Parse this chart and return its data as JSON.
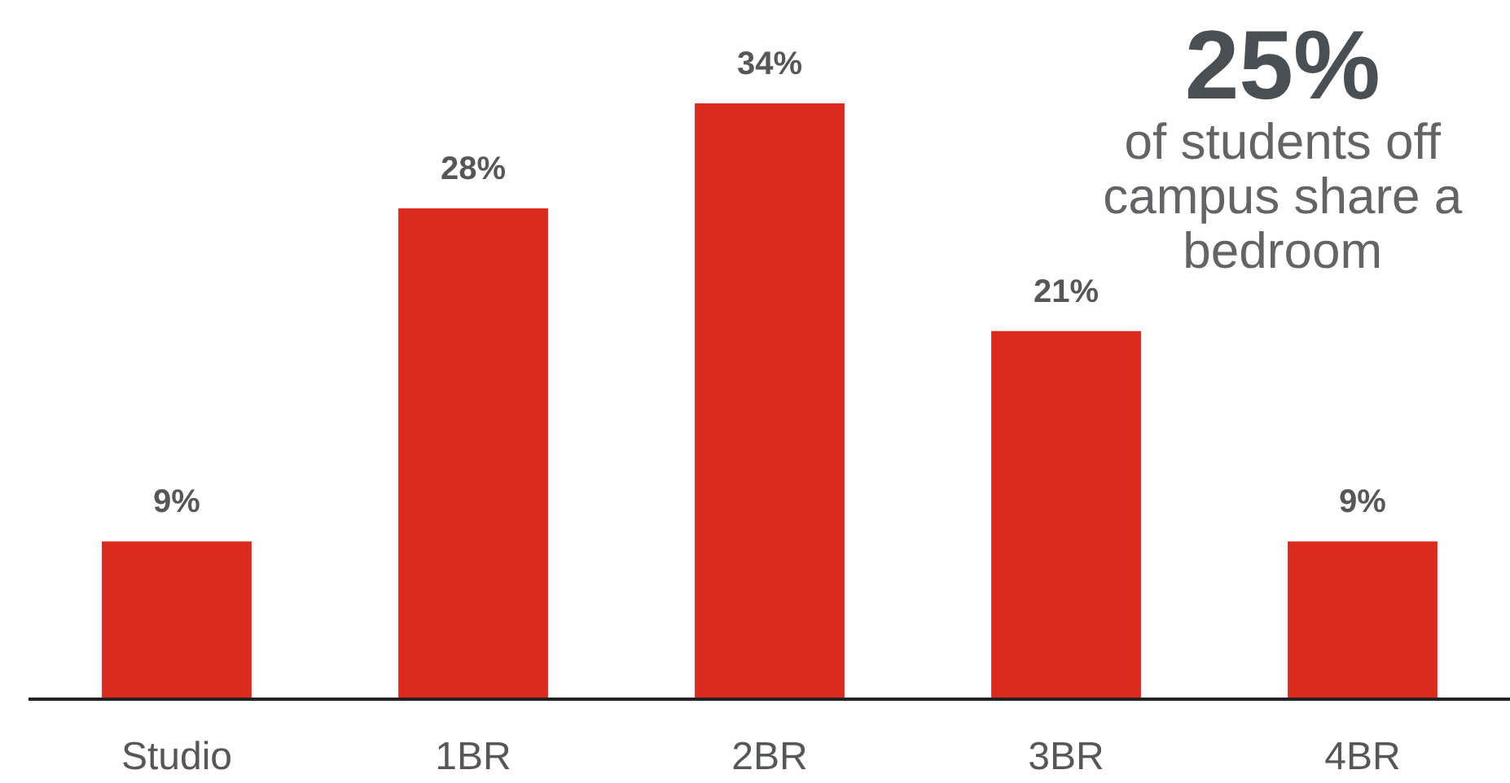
{
  "chart_data": {
    "type": "bar",
    "categories": [
      "Studio",
      "1BR",
      "2BR",
      "3BR",
      "4BR"
    ],
    "values": [
      9,
      28,
      34,
      21,
      9
    ],
    "color": "#dc2a1f",
    "value_labels": [
      "9%",
      "28%",
      "34%",
      "21%",
      "9%"
    ],
    "annotations": [
      "25%",
      "of students off campus share a bedroom"
    ],
    "tick_labels": "x"
  }
}
